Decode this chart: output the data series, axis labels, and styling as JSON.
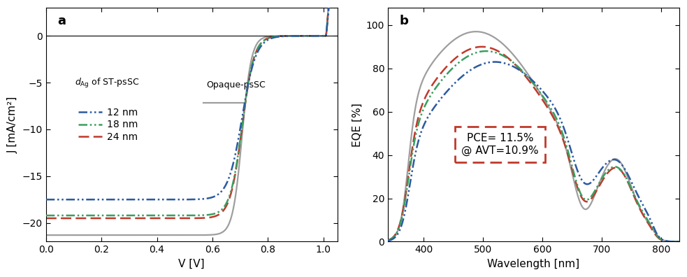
{
  "panel_a": {
    "xlabel": "V [V]",
    "ylabel": "J [mA/cm²]",
    "xlim": [
      0.0,
      1.05
    ],
    "ylim": [
      -22,
      3
    ],
    "yticks": [
      0,
      -5,
      -10,
      -15,
      -20
    ],
    "xticks": [
      0.0,
      0.2,
      0.4,
      0.6,
      0.8,
      1.0
    ],
    "colors": {
      "nm12": "#2B5AA0",
      "nm18": "#3A9E5F",
      "nm24": "#C0392B",
      "opaque": "#9E9E9E"
    }
  },
  "panel_b": {
    "xlabel": "Wavelength [nm]",
    "ylabel": "EQE [%]",
    "xlim": [
      340,
      830
    ],
    "ylim": [
      0,
      108
    ],
    "yticks": [
      0,
      20,
      40,
      60,
      80,
      100
    ],
    "xticks": [
      400,
      500,
      600,
      700,
      800
    ],
    "annotation": "PCE= 11.5%\n@ AVT=10.9%",
    "ann_color": "#C0392B",
    "colors": {
      "nm12": "#2B5AA0",
      "nm18": "#3A9E5F",
      "nm24": "#C0392B",
      "opaque": "#9E9E9E"
    }
  }
}
